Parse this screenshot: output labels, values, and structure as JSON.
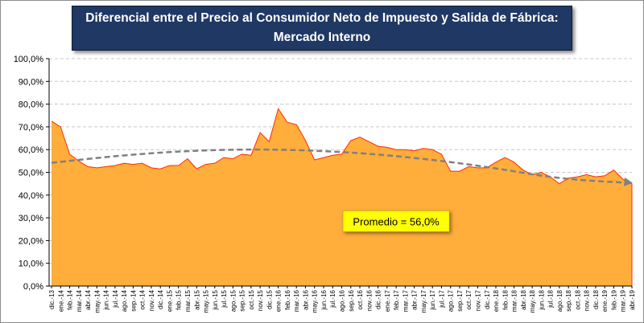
{
  "chart_data": {
    "type": "area",
    "title_line1": "Diferencial entre el Precio al Consumidor Neto de Impuesto y Salida de Fábrica:",
    "title_line2": "Mercado Interno",
    "xlabel": "",
    "ylabel": "",
    "ylim": [
      0,
      100
    ],
    "ytick_labels": [
      "0,0%",
      "10,0%",
      "20,0%",
      "30,0%",
      "40,0%",
      "50,0%",
      "60,0%",
      "70,0%",
      "80,0%",
      "90,0%",
      "100,0%"
    ],
    "grid": true,
    "categories": [
      "dic.-13",
      "ene.-14",
      "feb.-14",
      "mar.-14",
      "abr.-14",
      "may.-14",
      "jun.-14",
      "jul.-14",
      "ago.-14",
      "sep.-14",
      "oct.-14",
      "nov.-14",
      "dic.-14",
      "ene.-15",
      "feb.-15",
      "mar.-15",
      "abr.-15",
      "may.-15",
      "jun.-15",
      "jul.-15",
      "ago.-15",
      "sep.-15",
      "oct.-15",
      "nov.-15",
      "dic.-15",
      "ene.-16",
      "feb.-16",
      "mar.-16",
      "abr.-16",
      "may.-16",
      "jun.-16",
      "jul.-16",
      "ago.-16",
      "sep.-16",
      "oct.-16",
      "nov.-16",
      "dic.-16",
      "ene.-17",
      "feb.-17",
      "mar.-17",
      "abr.-17",
      "may.-17",
      "jun.-17",
      "jul.-17",
      "ago.-17",
      "sep.-17",
      "oct.-17",
      "nov.-17",
      "dic.-17",
      "ene.-18",
      "feb.-18",
      "mar.-18",
      "abr.-18",
      "may.-18",
      "jun.-18",
      "jul.-18",
      "ago.-18",
      "sep.-18",
      "oct.-18",
      "nov.-18",
      "dic.-18",
      "ene.-19",
      "feb.-19",
      "mar.-19",
      "abr.-19"
    ],
    "series": [
      {
        "values": [
          72.5,
          70,
          58,
          55,
          52.5,
          52,
          52.5,
          53,
          54,
          53.5,
          54,
          52,
          51.5,
          53,
          53,
          56,
          51.5,
          53.5,
          54,
          56.5,
          56,
          58,
          57.5,
          67.5,
          63.5,
          78,
          72,
          71,
          64,
          55.5,
          56.5,
          57.5,
          58,
          64,
          65.5,
          63.5,
          61.5,
          61,
          60,
          60,
          59.5,
          60.5,
          60,
          58,
          50.5,
          50.5,
          52.5,
          52,
          52,
          54.5,
          56.5,
          54.5,
          51,
          49,
          50,
          48,
          45,
          47.5,
          48,
          49,
          48,
          48.5,
          51,
          47,
          45
        ],
        "color": "#ffad3b",
        "line_color": "#ff2a00"
      }
    ],
    "trendline": {
      "style": "dashed",
      "color": "#808080",
      "values": [
        54.2,
        57.6,
        59.7,
        60.2,
        59.1,
        56.5,
        52.5,
        47.1,
        45.3
      ]
    },
    "annotation": {
      "text": "Promedio = 56,0%",
      "bg_color": "#ffff00",
      "x_category": "feb.-17",
      "y": 28.5
    }
  }
}
